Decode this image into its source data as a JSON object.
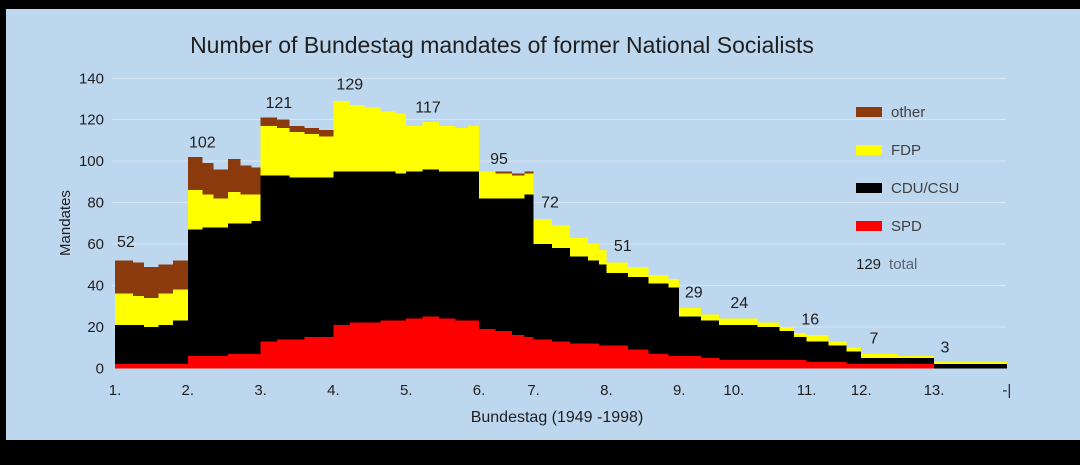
{
  "colors": {
    "background": "#BDD7EE",
    "frame": "#000000",
    "gridline": "#D8E5F2",
    "text": "#1F1F1F",
    "legend_text": "#404040",
    "muted_text": "#5A6470"
  },
  "legend": {
    "items": [
      {
        "label": "other",
        "color": "#8B3A0E"
      },
      {
        "label": "FDP",
        "color": "#FFFF00"
      },
      {
        "label": "CDU/CSU",
        "color": "#000000"
      },
      {
        "label": "SPD",
        "color": "#FF0000"
      }
    ],
    "total_value": "129",
    "total_label": "total"
  },
  "chart_data": {
    "type": "area",
    "stacked": true,
    "step": true,
    "title": "Number of Bundestag mandates of former National Socialists",
    "xlabel": "Bundestag  (1949 -1998)",
    "ylabel": "Mandates",
    "x_range": [
      1949,
      1998
    ],
    "ylim": [
      0,
      140
    ],
    "grid": true,
    "y_ticks": [
      0,
      20,
      40,
      60,
      80,
      100,
      120,
      140
    ],
    "x_ticks": [
      {
        "label": "1.",
        "year": 1949
      },
      {
        "label": "2.",
        "year": 1953
      },
      {
        "label": "3.",
        "year": 1957
      },
      {
        "label": "4.",
        "year": 1961
      },
      {
        "label": "5.",
        "year": 1965
      },
      {
        "label": "6.",
        "year": 1969
      },
      {
        "label": "7.",
        "year": 1972
      },
      {
        "label": "8.",
        "year": 1976
      },
      {
        "label": "9.",
        "year": 1980
      },
      {
        "label": "10.",
        "year": 1983
      },
      {
        "label": "11.",
        "year": 1987
      },
      {
        "label": "12.",
        "year": 1990
      },
      {
        "label": "13.",
        "year": 1994
      },
      {
        "label": "-|",
        "year": 1998
      }
    ],
    "series": [
      {
        "key": "spd",
        "name": "SPD",
        "color": "#FF0000"
      },
      {
        "key": "cdu",
        "name": "CDU/CSU",
        "color": "#000000"
      },
      {
        "key": "fdp",
        "name": "FDP",
        "color": "#FFFF00"
      },
      {
        "key": "other",
        "name": "other",
        "color": "#8B3A0E"
      }
    ],
    "period_start_totals": [
      52,
      102,
      121,
      129,
      117,
      95,
      72,
      51,
      29,
      24,
      16,
      7,
      3
    ],
    "x_end": 1998,
    "samples": [
      {
        "x": 1949.0,
        "spd": 2,
        "cdu": 19,
        "fdp": 15,
        "other": 16
      },
      {
        "x": 1950.0,
        "spd": 2,
        "cdu": 19,
        "fdp": 14,
        "other": 16
      },
      {
        "x": 1950.6,
        "spd": 2,
        "cdu": 18,
        "fdp": 14,
        "other": 15
      },
      {
        "x": 1951.4,
        "spd": 2,
        "cdu": 19,
        "fdp": 15,
        "other": 14
      },
      {
        "x": 1952.2,
        "spd": 2,
        "cdu": 21,
        "fdp": 15,
        "other": 14
      },
      {
        "x": 1953.0,
        "spd": 6,
        "cdu": 61,
        "fdp": 19,
        "other": 16
      },
      {
        "x": 1953.8,
        "spd": 6,
        "cdu": 62,
        "fdp": 16,
        "other": 15
      },
      {
        "x": 1954.4,
        "spd": 6,
        "cdu": 62,
        "fdp": 14,
        "other": 14
      },
      {
        "x": 1955.2,
        "spd": 7,
        "cdu": 63,
        "fdp": 15,
        "other": 16
      },
      {
        "x": 1955.9,
        "spd": 7,
        "cdu": 63,
        "fdp": 14,
        "other": 14
      },
      {
        "x": 1956.5,
        "spd": 7,
        "cdu": 64,
        "fdp": 13,
        "other": 13
      },
      {
        "x": 1957.0,
        "spd": 13,
        "cdu": 80,
        "fdp": 24,
        "other": 4
      },
      {
        "x": 1957.9,
        "spd": 14,
        "cdu": 79,
        "fdp": 23,
        "other": 4
      },
      {
        "x": 1958.6,
        "spd": 14,
        "cdu": 78,
        "fdp": 22,
        "other": 3
      },
      {
        "x": 1959.4,
        "spd": 15,
        "cdu": 77,
        "fdp": 21,
        "other": 3
      },
      {
        "x": 1960.2,
        "spd": 15,
        "cdu": 77,
        "fdp": 20,
        "other": 3
      },
      {
        "x": 1961.0,
        "spd": 21,
        "cdu": 74,
        "fdp": 34,
        "other": 0
      },
      {
        "x": 1961.9,
        "spd": 22,
        "cdu": 73,
        "fdp": 32,
        "other": 0
      },
      {
        "x": 1962.7,
        "spd": 22,
        "cdu": 73,
        "fdp": 31,
        "other": 0
      },
      {
        "x": 1963.6,
        "spd": 23,
        "cdu": 72,
        "fdp": 29,
        "other": 0
      },
      {
        "x": 1964.4,
        "spd": 23,
        "cdu": 71,
        "fdp": 29,
        "other": 0
      },
      {
        "x": 1965.0,
        "spd": 24,
        "cdu": 71,
        "fdp": 22,
        "other": 0
      },
      {
        "x": 1965.9,
        "spd": 25,
        "cdu": 71,
        "fdp": 23,
        "other": 0
      },
      {
        "x": 1966.8,
        "spd": 24,
        "cdu": 71,
        "fdp": 22,
        "other": 0
      },
      {
        "x": 1967.7,
        "spd": 23,
        "cdu": 72,
        "fdp": 21,
        "other": 0
      },
      {
        "x": 1968.4,
        "spd": 23,
        "cdu": 72,
        "fdp": 22,
        "other": 0
      },
      {
        "x": 1969.0,
        "spd": 19,
        "cdu": 63,
        "fdp": 13,
        "other": 0
      },
      {
        "x": 1969.9,
        "spd": 18,
        "cdu": 64,
        "fdp": 12,
        "other": 1
      },
      {
        "x": 1970.8,
        "spd": 16,
        "cdu": 66,
        "fdp": 11,
        "other": 1
      },
      {
        "x": 1971.5,
        "spd": 15,
        "cdu": 69,
        "fdp": 10,
        "other": 1
      },
      {
        "x": 1972.0,
        "spd": 14,
        "cdu": 46,
        "fdp": 12,
        "other": 0
      },
      {
        "x": 1973.0,
        "spd": 13,
        "cdu": 45,
        "fdp": 11,
        "other": 0
      },
      {
        "x": 1974.0,
        "spd": 12,
        "cdu": 42,
        "fdp": 9,
        "other": 0
      },
      {
        "x": 1975.0,
        "spd": 12,
        "cdu": 40,
        "fdp": 8,
        "other": 0
      },
      {
        "x": 1975.6,
        "spd": 11,
        "cdu": 39,
        "fdp": 7,
        "other": 0
      },
      {
        "x": 1976.0,
        "spd": 11,
        "cdu": 35,
        "fdp": 5,
        "other": 0
      },
      {
        "x": 1977.2,
        "spd": 9,
        "cdu": 35,
        "fdp": 5,
        "other": 0
      },
      {
        "x": 1978.3,
        "spd": 7,
        "cdu": 34,
        "fdp": 4,
        "other": 0
      },
      {
        "x": 1979.4,
        "spd": 6,
        "cdu": 33,
        "fdp": 4,
        "other": 0
      },
      {
        "x": 1980.0,
        "spd": 6,
        "cdu": 19,
        "fdp": 4,
        "other": 0
      },
      {
        "x": 1981.2,
        "spd": 5,
        "cdu": 18,
        "fdp": 3,
        "other": 0
      },
      {
        "x": 1982.2,
        "spd": 4,
        "cdu": 17,
        "fdp": 3,
        "other": 0
      },
      {
        "x": 1983.0,
        "spd": 4,
        "cdu": 17,
        "fdp": 3,
        "other": 0
      },
      {
        "x": 1984.3,
        "spd": 4,
        "cdu": 16,
        "fdp": 2,
        "other": 0
      },
      {
        "x": 1985.5,
        "spd": 4,
        "cdu": 14,
        "fdp": 2,
        "other": 0
      },
      {
        "x": 1986.3,
        "spd": 4,
        "cdu": 11,
        "fdp": 2,
        "other": 0
      },
      {
        "x": 1987.0,
        "spd": 3,
        "cdu": 10,
        "fdp": 3,
        "other": 0
      },
      {
        "x": 1988.2,
        "spd": 3,
        "cdu": 8,
        "fdp": 2,
        "other": 0
      },
      {
        "x": 1989.2,
        "spd": 2,
        "cdu": 6,
        "fdp": 2,
        "other": 0
      },
      {
        "x": 1990.0,
        "spd": 2,
        "cdu": 3,
        "fdp": 2,
        "other": 0
      },
      {
        "x": 1992.0,
        "spd": 2,
        "cdu": 3,
        "fdp": 1,
        "other": 0
      },
      {
        "x": 1994.0,
        "spd": 0,
        "cdu": 2,
        "fdp": 1,
        "other": 0
      }
    ],
    "annotations": [
      {
        "label": "52",
        "x": 1949.6,
        "y": 61
      },
      {
        "label": "102",
        "x": 1953.8,
        "y": 109
      },
      {
        "label": "121",
        "x": 1958.0,
        "y": 128
      },
      {
        "label": "129",
        "x": 1961.9,
        "y": 137
      },
      {
        "label": "117",
        "x": 1966.2,
        "y": 126
      },
      {
        "label": "95",
        "x": 1970.1,
        "y": 101
      },
      {
        "label": "72",
        "x": 1972.9,
        "y": 80
      },
      {
        "label": "51",
        "x": 1976.9,
        "y": 59
      },
      {
        "label": "29",
        "x": 1980.8,
        "y": 36.5
      },
      {
        "label": "24",
        "x": 1983.3,
        "y": 31.5
      },
      {
        "label": "16",
        "x": 1987.2,
        "y": 23.5
      },
      {
        "label": "7",
        "x": 1990.7,
        "y": 14.5
      },
      {
        "label": "3",
        "x": 1994.6,
        "y": 10
      }
    ]
  }
}
